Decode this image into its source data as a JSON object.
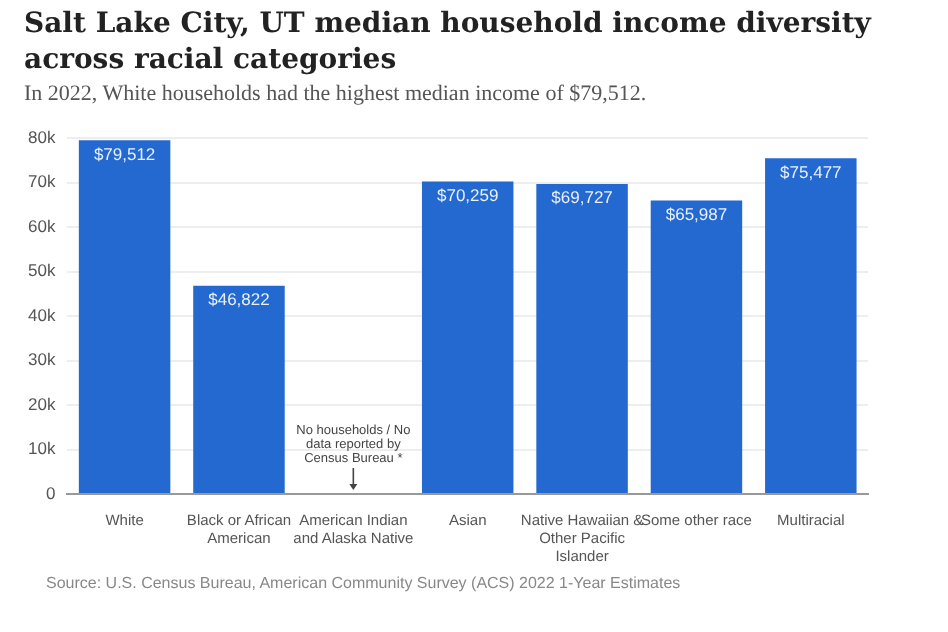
{
  "chart_data": {
    "type": "bar",
    "title": "Salt Lake City, UT median household income diversity across racial categories",
    "subtitle": "In 2022, White households had the highest median income of $79,512.",
    "categories": [
      "White",
      "Black or African American",
      "American Indian and Alaska Native",
      "Asian",
      "Native Hawaiian & Other Pacific Islander",
      "Some other race",
      "Multiracial"
    ],
    "values": [
      79512,
      46822,
      null,
      70259,
      69727,
      65987,
      75477
    ],
    "value_labels": [
      "$79,512",
      "$46,822",
      null,
      "$70,259",
      "$69,727",
      "$65,987",
      "$75,477"
    ],
    "color": "#2369d0",
    "ylim": [
      0,
      80000
    ],
    "yticks": [
      0,
      {
        "value": 10000,
        "label": "10k"
      },
      {
        "value": 20000,
        "label": "20k"
      },
      {
        "value": 30000,
        "label": "30k"
      },
      {
        "value": 40000,
        "label": "40k"
      },
      {
        "value": 50000,
        "label": "50k"
      },
      {
        "value": 60000,
        "label": "60k"
      },
      {
        "value": 70000,
        "label": "70k"
      },
      {
        "value": 80000,
        "label": "80k"
      }
    ],
    "grid": "y",
    "legend": false,
    "annotations": [
      "No households / No data reported by Census Bureau *",
      "Source: U.S. Census Bureau, American Community Survey (ACS) 2022 1-Year Estimates"
    ]
  }
}
